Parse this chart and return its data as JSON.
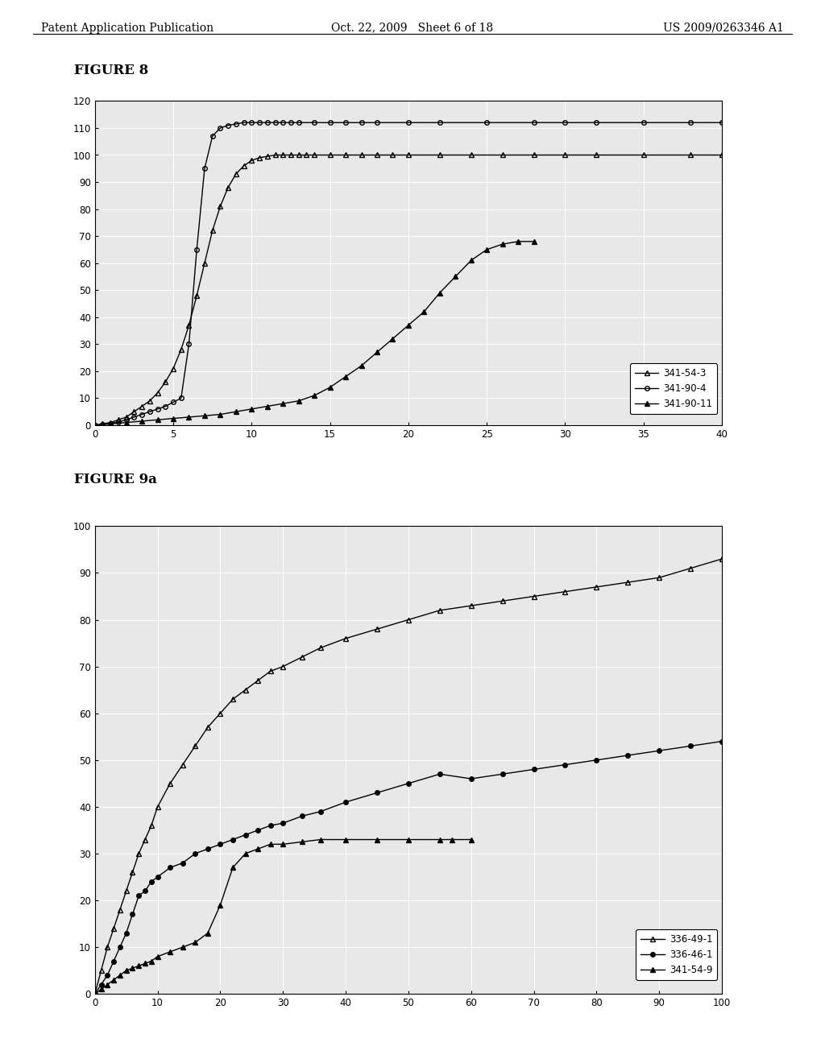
{
  "fig8": {
    "title": "FIGURE 8",
    "series": [
      {
        "label": "341-54-3",
        "marker": "^",
        "fillstyle": "none",
        "color": "black",
        "x": [
          0,
          0.5,
          1,
          1.5,
          2,
          2.5,
          3,
          3.5,
          4,
          4.5,
          5,
          5.5,
          6,
          6.5,
          7,
          7.5,
          8,
          8.5,
          9,
          9.5,
          10,
          10.5,
          11,
          11.5,
          12,
          12.5,
          13,
          13.5,
          14,
          15,
          16,
          17,
          18,
          19,
          20,
          22,
          24,
          26,
          28,
          30,
          32,
          35,
          38,
          40
        ],
        "y": [
          0,
          0.5,
          1,
          2,
          3,
          5,
          7,
          9,
          12,
          16,
          21,
          28,
          37,
          48,
          60,
          72,
          81,
          88,
          93,
          96,
          98,
          99,
          99.5,
          100,
          100,
          100,
          100,
          100,
          100,
          100,
          100,
          100,
          100,
          100,
          100,
          100,
          100,
          100,
          100,
          100,
          100,
          100,
          100,
          100
        ]
      },
      {
        "label": "341-90-4",
        "marker": "o",
        "fillstyle": "none",
        "color": "black",
        "x": [
          0,
          0.5,
          1,
          1.5,
          2,
          2.5,
          3,
          3.5,
          4,
          4.5,
          5,
          5.5,
          6,
          6.5,
          7,
          7.5,
          8,
          8.5,
          9,
          9.5,
          10,
          10.5,
          11,
          11.5,
          12,
          12.5,
          13,
          14,
          15,
          16,
          17,
          18,
          20,
          22,
          25,
          28,
          30,
          32,
          35,
          38,
          40
        ],
        "y": [
          0,
          0.3,
          0.7,
          1.2,
          2,
          3,
          4,
          5,
          6,
          7,
          8.5,
          10,
          30,
          65,
          95,
          107,
          110,
          111,
          111.5,
          112,
          112,
          112,
          112,
          112,
          112,
          112,
          112,
          112,
          112,
          112,
          112,
          112,
          112,
          112,
          112,
          112,
          112,
          112,
          112,
          112,
          112
        ]
      },
      {
        "label": "341-90-11",
        "marker": "^",
        "fillstyle": "full",
        "color": "black",
        "x": [
          0,
          1,
          2,
          3,
          4,
          5,
          6,
          7,
          8,
          9,
          10,
          11,
          12,
          13,
          14,
          15,
          16,
          17,
          18,
          19,
          20,
          21,
          22,
          23,
          24,
          25,
          26,
          27,
          28
        ],
        "y": [
          0,
          0.5,
          1,
          1.5,
          2,
          2.5,
          3,
          3.5,
          4,
          5,
          6,
          7,
          8,
          9,
          11,
          14,
          18,
          22,
          27,
          32,
          37,
          42,
          49,
          55,
          61,
          65,
          67,
          68,
          68
        ]
      }
    ],
    "xlim": [
      0,
      40
    ],
    "ylim": [
      0,
      120
    ],
    "xticks": [
      0,
      5,
      10,
      15,
      20,
      25,
      30,
      35,
      40
    ],
    "yticks": [
      0,
      10,
      20,
      30,
      40,
      50,
      60,
      70,
      80,
      90,
      100,
      110,
      120
    ],
    "legend_loc": "lower right"
  },
  "fig9a": {
    "title": "FIGURE 9a",
    "series": [
      {
        "label": "336-49-1",
        "marker": "^",
        "fillstyle": "none",
        "color": "black",
        "x": [
          0,
          1,
          2,
          3,
          4,
          5,
          6,
          7,
          8,
          9,
          10,
          12,
          14,
          16,
          18,
          20,
          22,
          24,
          26,
          28,
          30,
          33,
          36,
          40,
          45,
          50,
          55,
          60,
          65,
          70,
          75,
          80,
          85,
          90,
          95,
          100
        ],
        "y": [
          0,
          5,
          10,
          14,
          18,
          22,
          26,
          30,
          33,
          36,
          40,
          45,
          49,
          53,
          57,
          60,
          63,
          65,
          67,
          69,
          70,
          72,
          74,
          76,
          78,
          80,
          82,
          83,
          84,
          85,
          86,
          87,
          88,
          89,
          91,
          93
        ]
      },
      {
        "label": "336-46-1",
        "marker": "o",
        "fillstyle": "full",
        "color": "black",
        "x": [
          0,
          1,
          2,
          3,
          4,
          5,
          6,
          7,
          8,
          9,
          10,
          12,
          14,
          16,
          18,
          20,
          22,
          24,
          26,
          28,
          30,
          33,
          36,
          40,
          45,
          50,
          55,
          60,
          65,
          70,
          75,
          80,
          85,
          90,
          95,
          100
        ],
        "y": [
          0,
          2,
          4,
          7,
          10,
          13,
          17,
          21,
          22,
          24,
          25,
          27,
          28,
          30,
          31,
          32,
          33,
          34,
          35,
          36,
          36.5,
          38,
          39,
          41,
          43,
          45,
          47,
          46,
          47,
          48,
          49,
          50,
          51,
          52,
          53,
          54
        ]
      },
      {
        "label": "341-54-9",
        "marker": "^",
        "fillstyle": "full",
        "color": "black",
        "x": [
          0,
          1,
          2,
          3,
          4,
          5,
          6,
          7,
          8,
          9,
          10,
          12,
          14,
          16,
          18,
          20,
          22,
          24,
          26,
          28,
          30,
          33,
          36,
          40,
          45,
          50,
          55,
          57,
          60
        ],
        "y": [
          0,
          1,
          2,
          3,
          4,
          5,
          5.5,
          6,
          6.5,
          7,
          8,
          9,
          10,
          11,
          13,
          19,
          27,
          30,
          31,
          32,
          32,
          32.5,
          33,
          33,
          33,
          33,
          33,
          33,
          33
        ]
      }
    ],
    "xlim": [
      0,
      100
    ],
    "ylim": [
      0,
      100
    ],
    "xticks": [
      0,
      10,
      20,
      30,
      40,
      50,
      60,
      70,
      80,
      90,
      100
    ],
    "yticks": [
      0,
      10,
      20,
      30,
      40,
      50,
      60,
      70,
      80,
      90,
      100
    ],
    "legend_loc": "lower right"
  },
  "header": {
    "left": "Patent Application Publication",
    "center": "Oct. 22, 2009   Sheet 6 of 18",
    "right": "US 2009/0263346 A1",
    "fontsize": 10
  },
  "background_color": "#e8e8e8",
  "paper_color": "#ffffff"
}
